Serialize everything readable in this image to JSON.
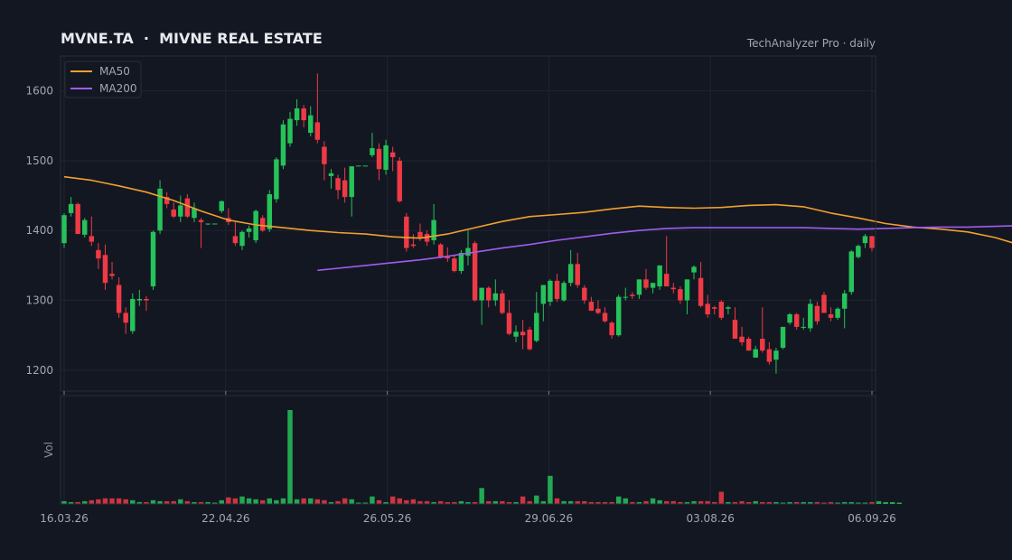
{
  "header": {
    "title": "MVNE.TA  ·  MIVNE REAL ESTATE",
    "source": "TechAnalyzer Pro · daily"
  },
  "legend": [
    {
      "label": "MA50",
      "color": "#f0a12d"
    },
    {
      "label": "MA200",
      "color": "#a05cf0"
    }
  ],
  "colors": {
    "background": "#131722",
    "panel_border": "#2a2e39",
    "grid": "#1f2430",
    "up": "#26c25a",
    "down": "#ee3a45",
    "text": "#a0a6b4",
    "title": "#e8eaee"
  },
  "chart_data": {
    "type": "candlestick",
    "y_ticks": [
      "1200",
      "1300",
      "1400",
      "1500",
      "1600"
    ],
    "ylim": [
      1170,
      1650
    ],
    "x_labels": [
      "16.03.26",
      "22.04.26",
      "26.05.26",
      "29.06.26",
      "03.08.26",
      "06.09.26"
    ],
    "volume_label": "Vol",
    "legend_position": "top-left",
    "grid": true,
    "candles": [
      [
        1382,
        1425,
        1375,
        1422
      ],
      [
        1425,
        1448,
        1420,
        1438
      ],
      [
        1438,
        1440,
        1395,
        1395
      ],
      [
        1394,
        1418,
        1390,
        1415
      ],
      [
        1392,
        1420,
        1378,
        1384
      ],
      [
        1372,
        1382,
        1345,
        1360
      ],
      [
        1365,
        1380,
        1315,
        1325
      ],
      [
        1338,
        1355,
        1330,
        1335
      ],
      [
        1322,
        1333,
        1275,
        1282
      ],
      [
        1282,
        1290,
        1252,
        1268
      ],
      [
        1256,
        1310,
        1252,
        1302
      ],
      [
        1300,
        1315,
        1292,
        1302
      ],
      [
        1302,
        1306,
        1285,
        1300
      ],
      [
        1320,
        1400,
        1315,
        1398
      ],
      [
        1400,
        1472,
        1395,
        1460
      ],
      [
        1448,
        1455,
        1432,
        1438
      ],
      [
        1430,
        1440,
        1418,
        1420
      ],
      [
        1420,
        1450,
        1412,
        1436
      ],
      [
        1446,
        1452,
        1418,
        1420
      ],
      [
        1418,
        1440,
        1412,
        1432
      ],
      [
        1415,
        1418,
        1375,
        1412
      ],
      [
        1410,
        1410,
        1408,
        1410
      ],
      [
        1410,
        1410,
        1409,
        1410
      ],
      [
        1428,
        1443,
        1425,
        1442
      ],
      [
        1418,
        1432,
        1408,
        1412
      ],
      [
        1392,
        1412,
        1378,
        1382
      ],
      [
        1378,
        1400,
        1372,
        1398
      ],
      [
        1398,
        1407,
        1390,
        1403
      ],
      [
        1386,
        1430,
        1382,
        1428
      ],
      [
        1418,
        1422,
        1398,
        1400
      ],
      [
        1402,
        1458,
        1398,
        1452
      ],
      [
        1445,
        1505,
        1440,
        1502
      ],
      [
        1493,
        1558,
        1488,
        1552
      ],
      [
        1525,
        1570,
        1520,
        1560
      ],
      [
        1558,
        1588,
        1550,
        1575
      ],
      [
        1575,
        1580,
        1548,
        1558
      ],
      [
        1540,
        1578,
        1535,
        1565
      ],
      [
        1555,
        1625,
        1525,
        1530
      ],
      [
        1520,
        1528,
        1472,
        1495
      ],
      [
        1478,
        1488,
        1460,
        1482
      ],
      [
        1475,
        1480,
        1445,
        1458
      ],
      [
        1472,
        1490,
        1440,
        1448
      ],
      [
        1448,
        1492,
        1420,
        1492
      ],
      [
        1493,
        1493,
        1493,
        1493
      ],
      [
        1493,
        1493,
        1493,
        1493
      ],
      [
        1508,
        1540,
        1505,
        1518
      ],
      [
        1517,
        1525,
        1472,
        1488
      ],
      [
        1487,
        1530,
        1480,
        1522
      ],
      [
        1512,
        1520,
        1485,
        1505
      ],
      [
        1500,
        1505,
        1440,
        1442
      ],
      [
        1420,
        1425,
        1370,
        1375
      ],
      [
        1380,
        1395,
        1375,
        1378
      ],
      [
        1398,
        1410,
        1385,
        1390
      ],
      [
        1395,
        1400,
        1378,
        1384
      ],
      [
        1386,
        1438,
        1380,
        1415
      ],
      [
        1380,
        1382,
        1360,
        1362
      ],
      [
        1362,
        1376,
        1355,
        1360
      ],
      [
        1360,
        1365,
        1340,
        1342
      ],
      [
        1342,
        1372,
        1338,
        1368
      ],
      [
        1364,
        1400,
        1350,
        1375
      ],
      [
        1382,
        1385,
        1298,
        1300
      ],
      [
        1300,
        1318,
        1265,
        1318
      ],
      [
        1318,
        1320,
        1290,
        1300
      ],
      [
        1300,
        1330,
        1292,
        1310
      ],
      [
        1310,
        1315,
        1280,
        1282
      ],
      [
        1282,
        1300,
        1250,
        1252
      ],
      [
        1248,
        1264,
        1240,
        1255
      ],
      [
        1255,
        1272,
        1230,
        1250
      ],
      [
        1258,
        1262,
        1228,
        1230
      ],
      [
        1242,
        1312,
        1240,
        1282
      ],
      [
        1295,
        1322,
        1270,
        1322
      ],
      [
        1298,
        1330,
        1292,
        1328
      ],
      [
        1328,
        1338,
        1298,
        1302
      ],
      [
        1300,
        1328,
        1298,
        1325
      ],
      [
        1325,
        1372,
        1320,
        1352
      ],
      [
        1352,
        1368,
        1318,
        1322
      ],
      [
        1318,
        1322,
        1295,
        1300
      ],
      [
        1298,
        1305,
        1285,
        1285
      ],
      [
        1288,
        1300,
        1280,
        1282
      ],
      [
        1282,
        1290,
        1268,
        1270
      ],
      [
        1268,
        1270,
        1245,
        1250
      ],
      [
        1250,
        1308,
        1248,
        1305
      ],
      [
        1305,
        1318,
        1300,
        1305
      ],
      [
        1308,
        1312,
        1302,
        1306
      ],
      [
        1308,
        1330,
        1302,
        1330
      ],
      [
        1330,
        1345,
        1315,
        1318
      ],
      [
        1318,
        1325,
        1310,
        1325
      ],
      [
        1320,
        1350,
        1315,
        1350
      ],
      [
        1338,
        1392,
        1320,
        1320
      ],
      [
        1318,
        1325,
        1310,
        1316
      ],
      [
        1316,
        1320,
        1295,
        1300
      ],
      [
        1300,
        1330,
        1280,
        1330
      ],
      [
        1340,
        1350,
        1330,
        1348
      ],
      [
        1332,
        1355,
        1290,
        1292
      ],
      [
        1295,
        1308,
        1275,
        1280
      ],
      [
        1290,
        1292,
        1280,
        1288
      ],
      [
        1298,
        1300,
        1272,
        1275
      ],
      [
        1288,
        1292,
        1280,
        1290
      ],
      [
        1272,
        1290,
        1245,
        1245
      ],
      [
        1248,
        1262,
        1235,
        1240
      ],
      [
        1245,
        1248,
        1228,
        1228
      ],
      [
        1218,
        1235,
        1218,
        1230
      ],
      [
        1245,
        1290,
        1225,
        1228
      ],
      [
        1230,
        1240,
        1208,
        1212
      ],
      [
        1215,
        1232,
        1195,
        1228
      ],
      [
        1232,
        1262,
        1230,
        1262
      ],
      [
        1268,
        1282,
        1265,
        1280
      ],
      [
        1280,
        1282,
        1258,
        1262
      ],
      [
        1262,
        1275,
        1258,
        1262
      ],
      [
        1260,
        1302,
        1255,
        1295
      ],
      [
        1292,
        1298,
        1265,
        1270
      ],
      [
        1308,
        1312,
        1282,
        1282
      ],
      [
        1280,
        1290,
        1270,
        1275
      ],
      [
        1275,
        1290,
        1272,
        1288
      ],
      [
        1288,
        1315,
        1260,
        1310
      ],
      [
        1312,
        1372,
        1308,
        1370
      ],
      [
        1362,
        1380,
        1360,
        1378
      ],
      [
        1382,
        1395,
        1375,
        1392
      ],
      [
        1392,
        1392,
        1370,
        1375
      ]
    ],
    "ma50": [
      [
        0,
        1477
      ],
      [
        4,
        1472
      ],
      [
        8,
        1464
      ],
      [
        12,
        1455
      ],
      [
        16,
        1443
      ],
      [
        20,
        1428
      ],
      [
        24,
        1415
      ],
      [
        28,
        1408
      ],
      [
        32,
        1404
      ],
      [
        36,
        1400
      ],
      [
        40,
        1397
      ],
      [
        44,
        1395
      ],
      [
        48,
        1391
      ],
      [
        52,
        1389
      ],
      [
        56,
        1395
      ],
      [
        60,
        1404
      ],
      [
        64,
        1413
      ],
      [
        68,
        1420
      ],
      [
        72,
        1423
      ],
      [
        76,
        1426
      ],
      [
        80,
        1431
      ],
      [
        84,
        1435
      ],
      [
        88,
        1433
      ],
      [
        92,
        1432
      ],
      [
        96,
        1433
      ],
      [
        100,
        1436
      ],
      [
        104,
        1437
      ],
      [
        108,
        1434
      ],
      [
        112,
        1425
      ],
      [
        116,
        1418
      ],
      [
        120,
        1410
      ],
      [
        124,
        1405
      ],
      [
        128,
        1402
      ],
      [
        132,
        1398
      ],
      [
        136,
        1390
      ],
      [
        140,
        1378
      ],
      [
        144,
        1368
      ],
      [
        148,
        1358
      ],
      [
        152,
        1351
      ],
      [
        156,
        1344
      ],
      [
        160,
        1335
      ],
      [
        164,
        1326
      ],
      [
        168,
        1316
      ],
      [
        172,
        1308
      ],
      [
        176,
        1300
      ],
      [
        180,
        1292
      ],
      [
        184,
        1288
      ],
      [
        188,
        1285
      ],
      [
        192,
        1285
      ],
      [
        196,
        1284
      ],
      [
        200,
        1286
      ],
      [
        204,
        1290
      ],
      [
        208,
        1296
      ]
    ],
    "ma200": [
      [
        37,
        1343
      ],
      [
        40,
        1346
      ],
      [
        44,
        1350
      ],
      [
        48,
        1354
      ],
      [
        52,
        1358
      ],
      [
        56,
        1363
      ],
      [
        60,
        1369
      ],
      [
        64,
        1375
      ],
      [
        68,
        1380
      ],
      [
        72,
        1386
      ],
      [
        76,
        1391
      ],
      [
        80,
        1396
      ],
      [
        84,
        1400
      ],
      [
        88,
        1403
      ],
      [
        92,
        1404
      ],
      [
        96,
        1404
      ],
      [
        100,
        1404
      ],
      [
        104,
        1404
      ],
      [
        108,
        1404
      ],
      [
        112,
        1403
      ],
      [
        116,
        1402
      ],
      [
        120,
        1403
      ],
      [
        124,
        1404
      ],
      [
        128,
        1405
      ],
      [
        132,
        1405
      ],
      [
        136,
        1406
      ],
      [
        140,
        1407
      ],
      [
        144,
        1408
      ],
      [
        148,
        1409
      ],
      [
        152,
        1410
      ],
      [
        156,
        1410
      ],
      [
        160,
        1411
      ],
      [
        164,
        1412
      ],
      [
        168,
        1413
      ],
      [
        172,
        1413
      ],
      [
        176,
        1411
      ],
      [
        180,
        1409
      ],
      [
        184,
        1408
      ],
      [
        188,
        1406
      ],
      [
        192,
        1404
      ],
      [
        196,
        1403
      ],
      [
        200,
        1402
      ],
      [
        204,
        1402
      ],
      [
        208,
        1401
      ]
    ],
    "volume": [
      0.03,
      0.02,
      0.02,
      0.03,
      0.04,
      0.05,
      0.06,
      0.06,
      0.06,
      0.05,
      0.04,
      0.02,
      0.02,
      0.04,
      0.03,
      0.03,
      0.03,
      0.05,
      0.03,
      0.02,
      0.02,
      0.02,
      0.01,
      0.04,
      0.07,
      0.06,
      0.08,
      0.06,
      0.05,
      0.04,
      0.06,
      0.04,
      0.06,
      1.0,
      0.05,
      0.06,
      0.06,
      0.05,
      0.04,
      0.02,
      0.03,
      0.06,
      0.05,
      0.01,
      0.01,
      0.08,
      0.04,
      0.02,
      0.08,
      0.06,
      0.04,
      0.05,
      0.03,
      0.03,
      0.02,
      0.03,
      0.02,
      0.02,
      0.03,
      0.02,
      0.02,
      0.17,
      0.03,
      0.03,
      0.03,
      0.02,
      0.02,
      0.08,
      0.03,
      0.09,
      0.03,
      0.3,
      0.06,
      0.03,
      0.03,
      0.03,
      0.03,
      0.02,
      0.02,
      0.02,
      0.02,
      0.08,
      0.06,
      0.02,
      0.02,
      0.03,
      0.06,
      0.04,
      0.03,
      0.03,
      0.02,
      0.02,
      0.03,
      0.03,
      0.03,
      0.02,
      0.13,
      0.02,
      0.02,
      0.03,
      0.02,
      0.03,
      0.02,
      0.02,
      0.02,
      0.01,
      0.02,
      0.02,
      0.02,
      0.02,
      0.02,
      0.01,
      0.02,
      0.01,
      0.02,
      0.02,
      0.01,
      0.01,
      0.02,
      0.03,
      0.02,
      0.02,
      0.01
    ]
  }
}
